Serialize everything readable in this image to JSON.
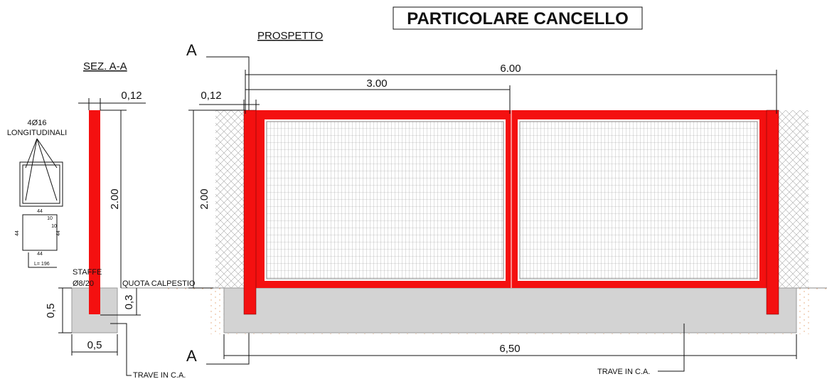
{
  "title": "PARTICOLARE CANCELLO",
  "section": {
    "label": "SEZ. A-A",
    "cut_marks": [
      "A",
      "A"
    ],
    "width": "0,12",
    "height": "2.00",
    "rebar": [
      "4Ø16",
      "LONGITUDINALI"
    ],
    "stirrup_dims": [
      "44",
      "10",
      "10",
      "44",
      "44",
      "44"
    ],
    "stirrup_length": "L= 196",
    "stirrup": [
      "STAFFE",
      "Ø8/20"
    ],
    "floor": "QUOTA CALPESTIO",
    "beam_height": "0,5",
    "embed": "0,3",
    "beam_width": "0,5",
    "beam": "TRAVE IN C.A."
  },
  "elevation": {
    "label": "PROSPETTO",
    "total": "6.00",
    "half": "3.00",
    "post": "0,12",
    "height": "2.00",
    "beam_length": "6,50",
    "beam": "TRAVE IN C.A."
  }
}
